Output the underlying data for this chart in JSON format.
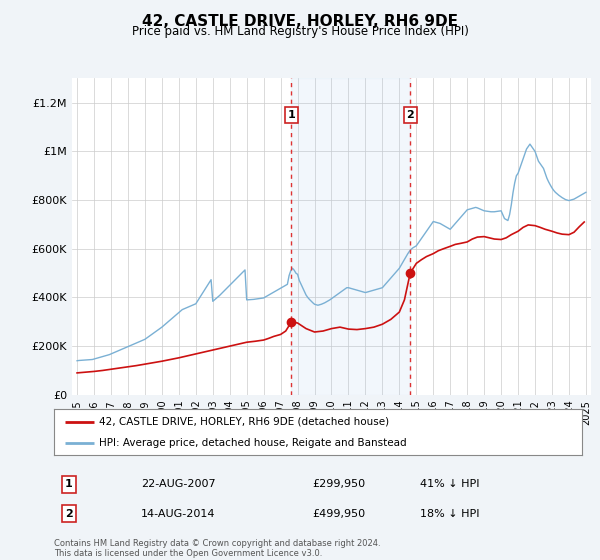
{
  "title": "42, CASTLE DRIVE, HORLEY, RH6 9DE",
  "subtitle": "Price paid vs. HM Land Registry's House Price Index (HPI)",
  "background_color": "#f0f4f8",
  "plot_background": "#ffffff",
  "ylim": [
    0,
    1300000
  ],
  "yticks": [
    0,
    200000,
    400000,
    600000,
    800000,
    1000000,
    1200000
  ],
  "ytick_labels": [
    "£0",
    "£200K",
    "£400K",
    "£600K",
    "£800K",
    "£1M",
    "£1.2M"
  ],
  "hpi_color": "#7ab0d4",
  "price_color": "#cc1111",
  "m1x": 2007.64,
  "m2x": 2014.64,
  "marker1_price": 299950,
  "marker2_price": 499950,
  "legend_line1": "42, CASTLE DRIVE, HORLEY, RH6 9DE (detached house)",
  "legend_line2": "HPI: Average price, detached house, Reigate and Banstead",
  "table_row1": [
    "1",
    "22-AUG-2007",
    "£299,950",
    "41% ↓ HPI"
  ],
  "table_row2": [
    "2",
    "14-AUG-2014",
    "£499,950",
    "18% ↓ HPI"
  ],
  "footer": "Contains HM Land Registry data © Crown copyright and database right 2024.\nThis data is licensed under the Open Government Licence v3.0.",
  "xlim_left": 1994.7,
  "xlim_right": 2025.3,
  "x_years": [
    1995,
    1996,
    1997,
    1998,
    1999,
    2000,
    2001,
    2002,
    2003,
    2004,
    2005,
    2006,
    2007,
    2008,
    2009,
    2010,
    2011,
    2012,
    2013,
    2014,
    2015,
    2016,
    2017,
    2018,
    2019,
    2020,
    2021,
    2022,
    2023,
    2024,
    2025
  ],
  "hpi_x": [
    1995.0,
    1995.1,
    1995.2,
    1995.3,
    1995.4,
    1995.5,
    1995.6,
    1995.7,
    1995.8,
    1995.9,
    1996.0,
    1996.1,
    1996.2,
    1996.3,
    1996.4,
    1996.5,
    1996.6,
    1996.7,
    1996.8,
    1996.9,
    1997.0,
    1997.1,
    1997.2,
    1997.3,
    1997.4,
    1997.5,
    1997.6,
    1997.7,
    1997.8,
    1997.9,
    1998.0,
    1998.1,
    1998.2,
    1998.3,
    1998.4,
    1998.5,
    1998.6,
    1998.7,
    1998.8,
    1998.9,
    1999.0,
    1999.1,
    1999.2,
    1999.3,
    1999.4,
    1999.5,
    1999.6,
    1999.7,
    1999.8,
    1999.9,
    2000.0,
    2000.1,
    2000.2,
    2000.3,
    2000.4,
    2000.5,
    2000.6,
    2000.7,
    2000.8,
    2000.9,
    2001.0,
    2001.1,
    2001.2,
    2001.3,
    2001.4,
    2001.5,
    2001.6,
    2001.7,
    2001.8,
    2001.9,
    2002.0,
    2002.1,
    2002.2,
    2002.3,
    2002.4,
    2002.5,
    2002.6,
    2002.7,
    2002.8,
    2002.9,
    2003.0,
    2003.1,
    2003.2,
    2003.3,
    2003.4,
    2003.5,
    2003.6,
    2003.7,
    2003.8,
    2003.9,
    2004.0,
    2004.1,
    2004.2,
    2004.3,
    2004.4,
    2004.5,
    2004.6,
    2004.7,
    2004.8,
    2004.9,
    2005.0,
    2005.1,
    2005.2,
    2005.3,
    2005.4,
    2005.5,
    2005.6,
    2005.7,
    2005.8,
    2005.9,
    2006.0,
    2006.1,
    2006.2,
    2006.3,
    2006.4,
    2006.5,
    2006.6,
    2006.7,
    2006.8,
    2006.9,
    2007.0,
    2007.1,
    2007.2,
    2007.3,
    2007.4,
    2007.5,
    2007.6,
    2007.7,
    2007.8,
    2007.9,
    2008.0,
    2008.1,
    2008.2,
    2008.3,
    2008.4,
    2008.5,
    2008.6,
    2008.7,
    2008.8,
    2008.9,
    2009.0,
    2009.1,
    2009.2,
    2009.3,
    2009.4,
    2009.5,
    2009.6,
    2009.7,
    2009.8,
    2009.9,
    2010.0,
    2010.1,
    2010.2,
    2010.3,
    2010.4,
    2010.5,
    2010.6,
    2010.7,
    2010.8,
    2010.9,
    2011.0,
    2011.1,
    2011.2,
    2011.3,
    2011.4,
    2011.5,
    2011.6,
    2011.7,
    2011.8,
    2011.9,
    2012.0,
    2012.1,
    2012.2,
    2012.3,
    2012.4,
    2012.5,
    2012.6,
    2012.7,
    2012.8,
    2012.9,
    2013.0,
    2013.1,
    2013.2,
    2013.3,
    2013.4,
    2013.5,
    2013.6,
    2013.7,
    2013.8,
    2013.9,
    2014.0,
    2014.1,
    2014.2,
    2014.3,
    2014.4,
    2014.5,
    2014.6,
    2014.7,
    2014.8,
    2014.9,
    2015.0,
    2015.1,
    2015.2,
    2015.3,
    2015.4,
    2015.5,
    2015.6,
    2015.7,
    2015.8,
    2015.9,
    2016.0,
    2016.1,
    2016.2,
    2016.3,
    2016.4,
    2016.5,
    2016.6,
    2016.7,
    2016.8,
    2016.9,
    2017.0,
    2017.1,
    2017.2,
    2017.3,
    2017.4,
    2017.5,
    2017.6,
    2017.7,
    2017.8,
    2017.9,
    2018.0,
    2018.1,
    2018.2,
    2018.3,
    2018.4,
    2018.5,
    2018.6,
    2018.7,
    2018.8,
    2018.9,
    2019.0,
    2019.1,
    2019.2,
    2019.3,
    2019.4,
    2019.5,
    2019.6,
    2019.7,
    2019.8,
    2019.9,
    2020.0,
    2020.1,
    2020.2,
    2020.3,
    2020.4,
    2020.5,
    2020.6,
    2020.7,
    2020.8,
    2020.9,
    2021.0,
    2021.1,
    2021.2,
    2021.3,
    2021.4,
    2021.5,
    2021.6,
    2021.7,
    2021.8,
    2021.9,
    2022.0,
    2022.1,
    2022.2,
    2022.3,
    2022.4,
    2022.5,
    2022.6,
    2022.7,
    2022.8,
    2022.9,
    2023.0,
    2023.1,
    2023.2,
    2023.3,
    2023.4,
    2023.5,
    2023.6,
    2023.7,
    2023.8,
    2023.9,
    2024.0,
    2024.1,
    2024.2,
    2024.3,
    2024.4,
    2024.5,
    2024.6,
    2024.7,
    2024.8,
    2024.9,
    2025.0
  ],
  "hpi_y": [
    140000,
    141000,
    141500,
    142000,
    142500,
    143000,
    143500,
    144000,
    144500,
    145000,
    147000,
    149000,
    151000,
    153000,
    155000,
    157000,
    159000,
    161000,
    163000,
    165000,
    168000,
    171000,
    174000,
    177000,
    180000,
    183000,
    186000,
    189000,
    192000,
    195000,
    198000,
    201000,
    204000,
    207000,
    210000,
    213000,
    216000,
    219000,
    222000,
    225000,
    228000,
    233000,
    238000,
    243000,
    248000,
    253000,
    258000,
    263000,
    268000,
    273000,
    278000,
    284000,
    290000,
    296000,
    302000,
    308000,
    314000,
    320000,
    326000,
    332000,
    338000,
    344000,
    350000,
    353000,
    356000,
    359000,
    362000,
    365000,
    368000,
    371000,
    374000,
    385000,
    396000,
    407000,
    418000,
    429000,
    440000,
    451000,
    462000,
    473000,
    384000,
    390000,
    396000,
    402000,
    408000,
    415000,
    422000,
    429000,
    436000,
    443000,
    450000,
    457000,
    464000,
    471000,
    478000,
    485000,
    492000,
    499000,
    506000,
    513000,
    390000,
    390500,
    391000,
    391500,
    392000,
    393000,
    394000,
    395000,
    396000,
    397000,
    398000,
    402000,
    406000,
    410000,
    414000,
    418000,
    422000,
    426000,
    430000,
    434000,
    438000,
    442000,
    446000,
    450000,
    454000,
    490000,
    510000,
    520000,
    512000,
    500000,
    495000,
    470000,
    455000,
    440000,
    425000,
    410000,
    400000,
    392000,
    385000,
    378000,
    372000,
    370000,
    368000,
    370000,
    372000,
    375000,
    378000,
    382000,
    386000,
    390000,
    395000,
    400000,
    405000,
    410000,
    415000,
    420000,
    425000,
    430000,
    435000,
    440000,
    440000,
    438000,
    436000,
    434000,
    432000,
    430000,
    428000,
    426000,
    424000,
    422000,
    420000,
    422000,
    424000,
    426000,
    428000,
    430000,
    432000,
    434000,
    436000,
    438000,
    440000,
    448000,
    456000,
    464000,
    472000,
    480000,
    488000,
    496000,
    504000,
    512000,
    520000,
    532000,
    544000,
    556000,
    568000,
    580000,
    590000,
    598000,
    604000,
    608000,
    612000,
    622000,
    632000,
    642000,
    652000,
    662000,
    672000,
    682000,
    692000,
    702000,
    712000,
    710000,
    708000,
    706000,
    704000,
    700000,
    696000,
    692000,
    688000,
    684000,
    680000,
    688000,
    696000,
    704000,
    712000,
    720000,
    728000,
    736000,
    744000,
    752000,
    760000,
    762000,
    764000,
    766000,
    768000,
    770000,
    768000,
    765000,
    762000,
    759000,
    756000,
    755000,
    754000,
    753000,
    752000,
    752000,
    752000,
    753000,
    754000,
    755000,
    756000,
    740000,
    724000,
    720000,
    716000,
    740000,
    780000,
    830000,
    870000,
    900000,
    910000,
    930000,
    950000,
    970000,
    990000,
    1010000,
    1020000,
    1030000,
    1020000,
    1010000,
    1000000,
    980000,
    960000,
    950000,
    940000,
    930000,
    910000,
    890000,
    875000,
    862000,
    850000,
    840000,
    832000,
    826000,
    820000,
    815000,
    810000,
    806000,
    802000,
    800000,
    798000,
    800000,
    802000,
    804000,
    808000,
    812000,
    816000,
    820000,
    824000,
    828000,
    832000
  ],
  "price_x": [
    1995.0,
    1995.5,
    1996.0,
    1996.5,
    1997.0,
    1997.5,
    1998.0,
    1998.5,
    1999.0,
    1999.5,
    2000.0,
    2000.5,
    2001.0,
    2001.5,
    2002.0,
    2002.5,
    2003.0,
    2003.5,
    2004.0,
    2004.5,
    2005.0,
    2005.5,
    2006.0,
    2006.3,
    2006.6,
    2007.0,
    2007.3,
    2007.64,
    2008.0,
    2008.5,
    2009.0,
    2009.5,
    2010.0,
    2010.5,
    2011.0,
    2011.5,
    2012.0,
    2012.5,
    2013.0,
    2013.5,
    2014.0,
    2014.3,
    2014.64,
    2015.0,
    2015.3,
    2015.6,
    2016.0,
    2016.3,
    2016.6,
    2017.0,
    2017.3,
    2017.6,
    2018.0,
    2018.3,
    2018.6,
    2019.0,
    2019.3,
    2019.6,
    2020.0,
    2020.3,
    2020.6,
    2021.0,
    2021.3,
    2021.6,
    2022.0,
    2022.3,
    2022.6,
    2023.0,
    2023.3,
    2023.6,
    2024.0,
    2024.3,
    2024.6,
    2024.9
  ],
  "price_y": [
    90000,
    93000,
    96000,
    100000,
    105000,
    110000,
    115000,
    120000,
    126000,
    132000,
    138000,
    145000,
    152000,
    160000,
    168000,
    176000,
    184000,
    192000,
    200000,
    208000,
    216000,
    220000,
    225000,
    232000,
    240000,
    248000,
    262000,
    299950,
    295000,
    272000,
    258000,
    262000,
    272000,
    278000,
    270000,
    268000,
    272000,
    278000,
    290000,
    310000,
    340000,
    390000,
    499950,
    540000,
    555000,
    568000,
    580000,
    592000,
    600000,
    610000,
    618000,
    622000,
    628000,
    640000,
    648000,
    650000,
    645000,
    640000,
    638000,
    645000,
    658000,
    672000,
    688000,
    698000,
    695000,
    688000,
    680000,
    672000,
    665000,
    660000,
    658000,
    668000,
    690000,
    710000
  ]
}
